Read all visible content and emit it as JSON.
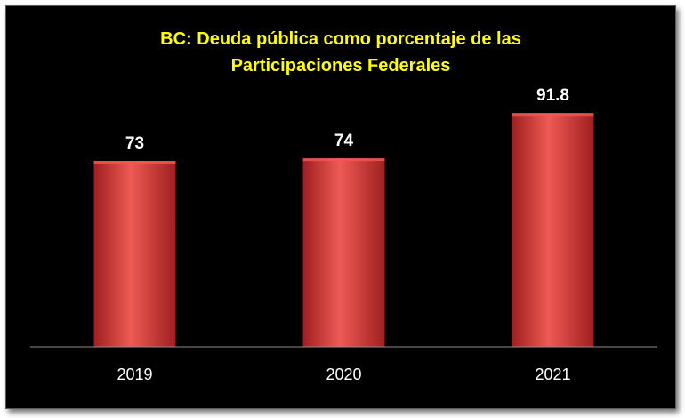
{
  "chart_data": {
    "type": "bar",
    "title": "BC: Deuda pública como porcentaje de las\nParticipaciones Federales",
    "categories": [
      "2019",
      "2020",
      "2021"
    ],
    "values": [
      73,
      74,
      91.8
    ],
    "data_labels": [
      "73",
      "74",
      "91.8"
    ],
    "xlabel": "",
    "ylabel": "",
    "ylim": [
      0,
      100
    ],
    "grid": false,
    "legend": "none"
  },
  "colors": {
    "background": "#000000",
    "title": "#ffff00",
    "bar": "#d83a3a",
    "bar_highlight": "#ef5a55",
    "bar_shadow": "#9e1f1f",
    "labels": "#ffffff",
    "axis": "#8c8c8c"
  }
}
